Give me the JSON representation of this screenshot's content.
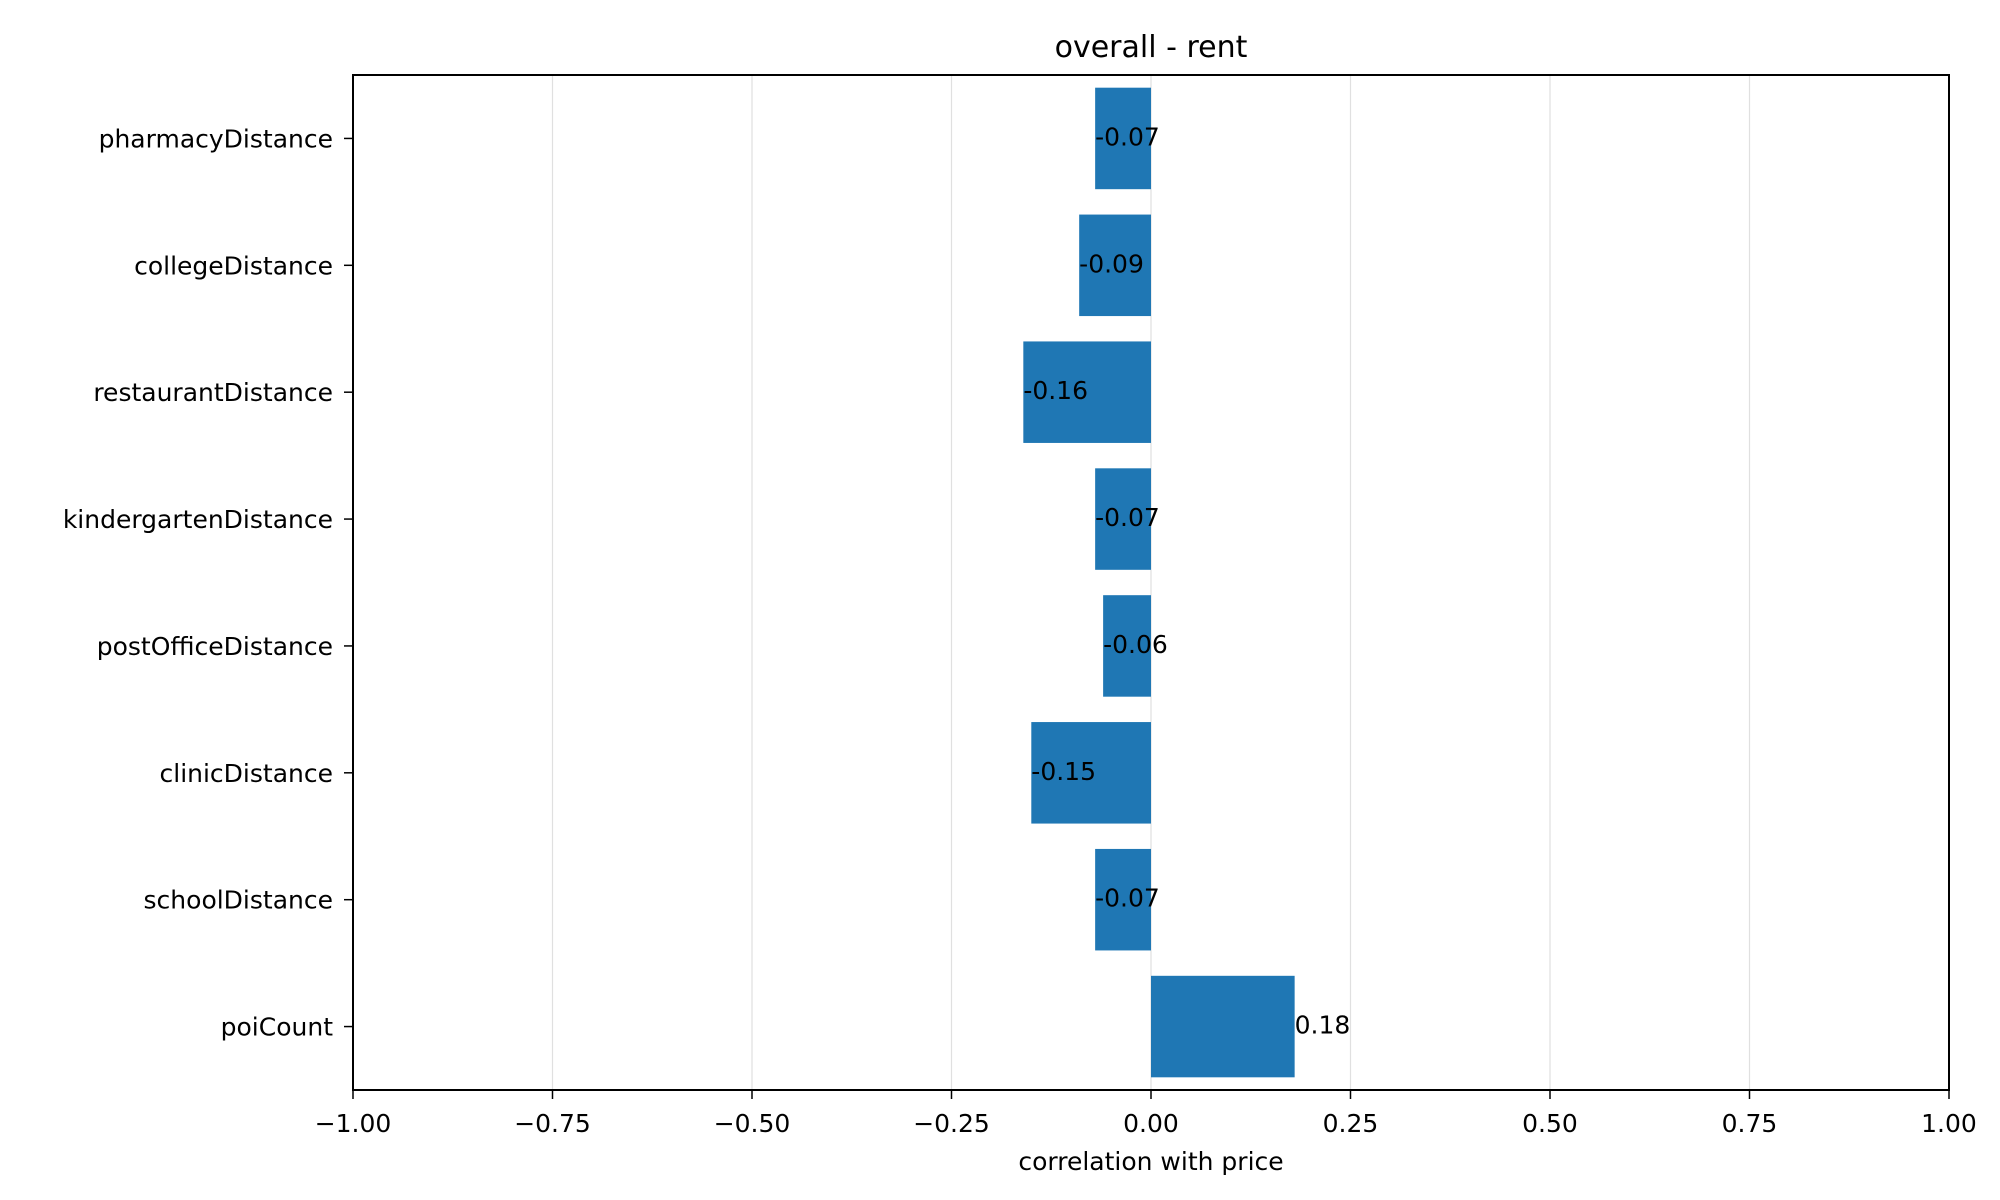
{
  "chart_data": {
    "type": "bar",
    "orientation": "horizontal",
    "title": "overall - rent",
    "xlabel": "correlation with price",
    "ylabel": "",
    "xlim": [
      -1.0,
      1.0
    ],
    "xticks": [
      -1.0,
      -0.75,
      -0.5,
      -0.25,
      0.0,
      0.25,
      0.5,
      0.75,
      1.0
    ],
    "xtick_labels": [
      "−1.00",
      "−0.75",
      "−0.50",
      "−0.25",
      "0.00",
      "0.25",
      "0.50",
      "0.75",
      "1.00"
    ],
    "grid": "vertical",
    "categories": [
      "pharmacyDistance",
      "collegeDistance",
      "restaurantDistance",
      "kindergartenDistance",
      "postOfficeDistance",
      "clinicDistance",
      "schoolDistance",
      "poiCount"
    ],
    "values": [
      -0.07,
      -0.09,
      -0.16,
      -0.07,
      -0.06,
      -0.15,
      -0.07,
      0.18
    ],
    "data_labels": [
      "-0.07",
      "-0.09",
      "-0.16",
      "-0.07",
      "-0.06",
      "-0.15",
      "-0.07",
      "0.18"
    ],
    "bar_color": "#1f77b4",
    "grid_color": "#e0e0e0"
  }
}
